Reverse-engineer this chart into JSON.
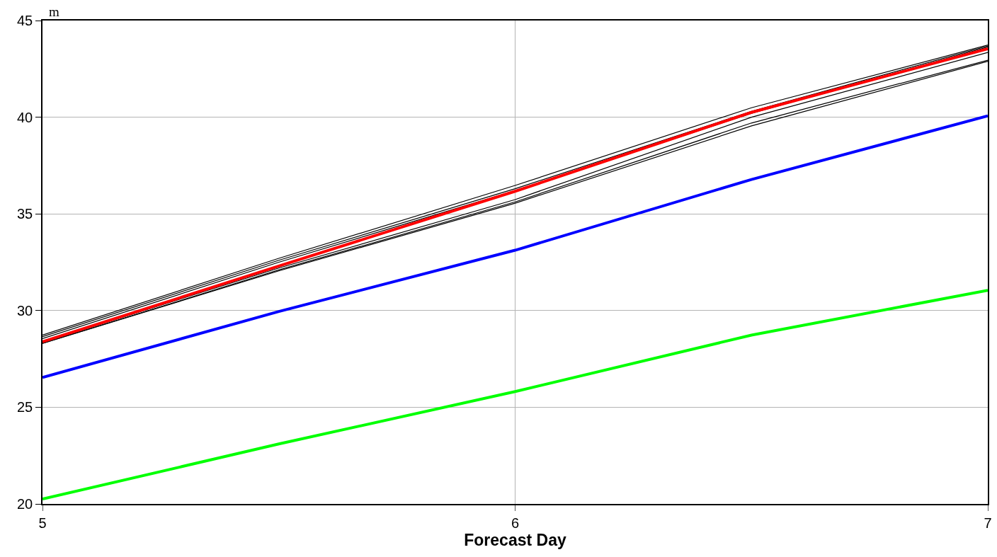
{
  "chart_data": {
    "type": "line",
    "xlabel": "Forecast Day",
    "ylabel": "m",
    "x": [
      5,
      5.5,
      6,
      6.5,
      7
    ],
    "xlim": [
      5,
      7
    ],
    "xticks": [
      5,
      6,
      7
    ],
    "ylim": [
      20,
      45
    ],
    "yticks": [
      20,
      25,
      30,
      35,
      40,
      45
    ],
    "grid": true,
    "line_style": "solid",
    "marker": "none",
    "series": [
      {
        "color": "#000000",
        "values": [
          28.73,
          32.7,
          36.47,
          40.49,
          43.73
        ]
      },
      {
        "color": "#000000",
        "values": [
          28.65,
          32.6,
          36.3,
          40.3,
          43.68
        ]
      },
      {
        "color": "#000000",
        "values": [
          28.55,
          32.5,
          36.2,
          40.2,
          43.62
        ]
      },
      {
        "color": "#000000",
        "values": [
          28.35,
          32.2,
          35.74,
          40.0,
          43.35
        ]
      },
      {
        "color": "#000000",
        "values": [
          28.3,
          32.1,
          35.62,
          39.7,
          42.95
        ]
      },
      {
        "color": "#000000",
        "values": [
          28.3,
          32.05,
          35.55,
          39.55,
          42.89
        ]
      },
      {
        "color": "#ff0000",
        "values": [
          28.39,
          32.3,
          36.17,
          40.25,
          43.54
        ]
      },
      {
        "color": "#0000ff",
        "values": [
          26.54,
          29.95,
          33.12,
          36.78,
          40.07
        ]
      },
      {
        "color": "#00ff00",
        "values": [
          20.25,
          23.1,
          25.81,
          28.73,
          31.05
        ]
      }
    ]
  }
}
